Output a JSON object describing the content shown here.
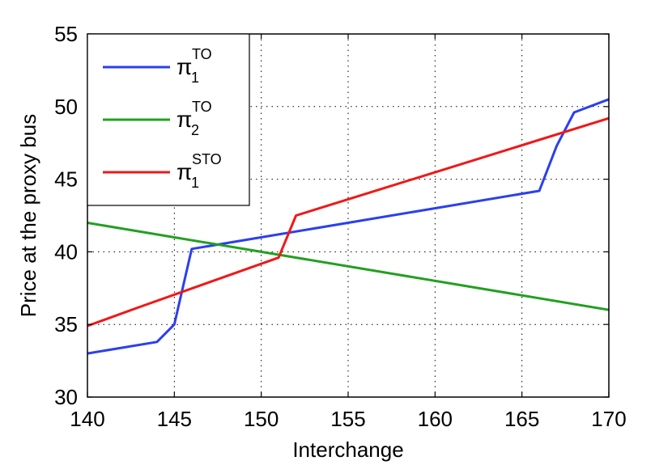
{
  "chart_data": {
    "type": "line",
    "xlabel": "Interchange",
    "ylabel": "Price at the proxy bus",
    "xlim": [
      140,
      170
    ],
    "ylim": [
      30,
      55
    ],
    "xticks": [
      "140",
      "145",
      "150",
      "155",
      "160",
      "165",
      "170"
    ],
    "yticks": [
      "30",
      "35",
      "40",
      "45",
      "50",
      "55"
    ],
    "grid": true,
    "legend_position": "top-left",
    "series": [
      {
        "name": "π1TO",
        "legend": {
          "base": "π",
          "sub": "1",
          "sup": "TO"
        },
        "color": "#2b3ff0",
        "x": [
          140,
          144,
          145,
          146,
          166,
          167,
          168,
          170
        ],
        "y": [
          33.0,
          33.8,
          35.0,
          40.2,
          44.2,
          47.3,
          49.6,
          50.5
        ]
      },
      {
        "name": "π2TO",
        "legend": {
          "base": "π",
          "sub": "2",
          "sup": "TO"
        },
        "color": "#22a020",
        "x": [
          140,
          170
        ],
        "y": [
          42.0,
          36.0
        ]
      },
      {
        "name": "π1STO",
        "legend": {
          "base": "π",
          "sub": "1",
          "sup": "STO"
        },
        "color": "#f01818",
        "x": [
          140,
          143,
          147,
          151,
          152,
          170
        ],
        "y": [
          34.9,
          36.2,
          37.9,
          39.6,
          42.5,
          49.2
        ]
      }
    ]
  }
}
